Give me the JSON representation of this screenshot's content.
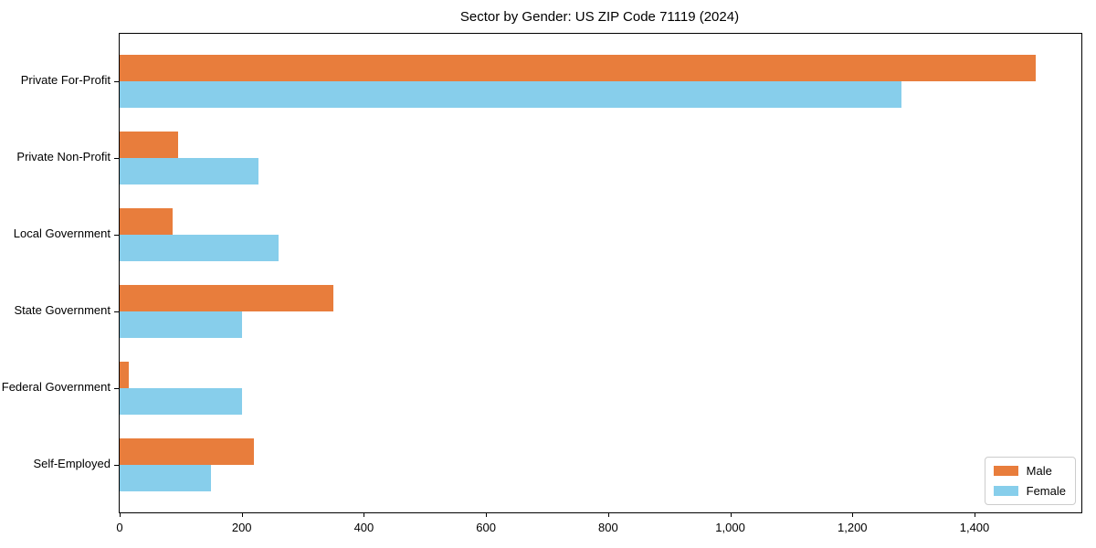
{
  "chart_data": {
    "type": "bar",
    "orientation": "horizontal",
    "title": "Sector by Gender: US ZIP Code 71119 (2024)",
    "categories": [
      "Private For-Profit",
      "Private Non-Profit",
      "Local Government",
      "State Government",
      "Federal Government",
      "Self-Employed"
    ],
    "series": [
      {
        "name": "Male",
        "color": "#e87d3c",
        "values": [
          1500,
          95,
          87,
          350,
          15,
          220
        ]
      },
      {
        "name": "Female",
        "color": "#87ceeb",
        "values": [
          1280,
          227,
          260,
          200,
          200,
          150
        ]
      }
    ],
    "xlim": [
      0,
      1575
    ],
    "xticks": {
      "values": [
        0,
        200,
        400,
        600,
        800,
        1000,
        1200,
        1400
      ],
      "labels": [
        "0",
        "200",
        "400",
        "600",
        "800",
        "1,000",
        "1,200",
        "1,400"
      ]
    },
    "xlabel": "",
    "ylabel": "",
    "grid": false,
    "legend_position": "lower right"
  }
}
